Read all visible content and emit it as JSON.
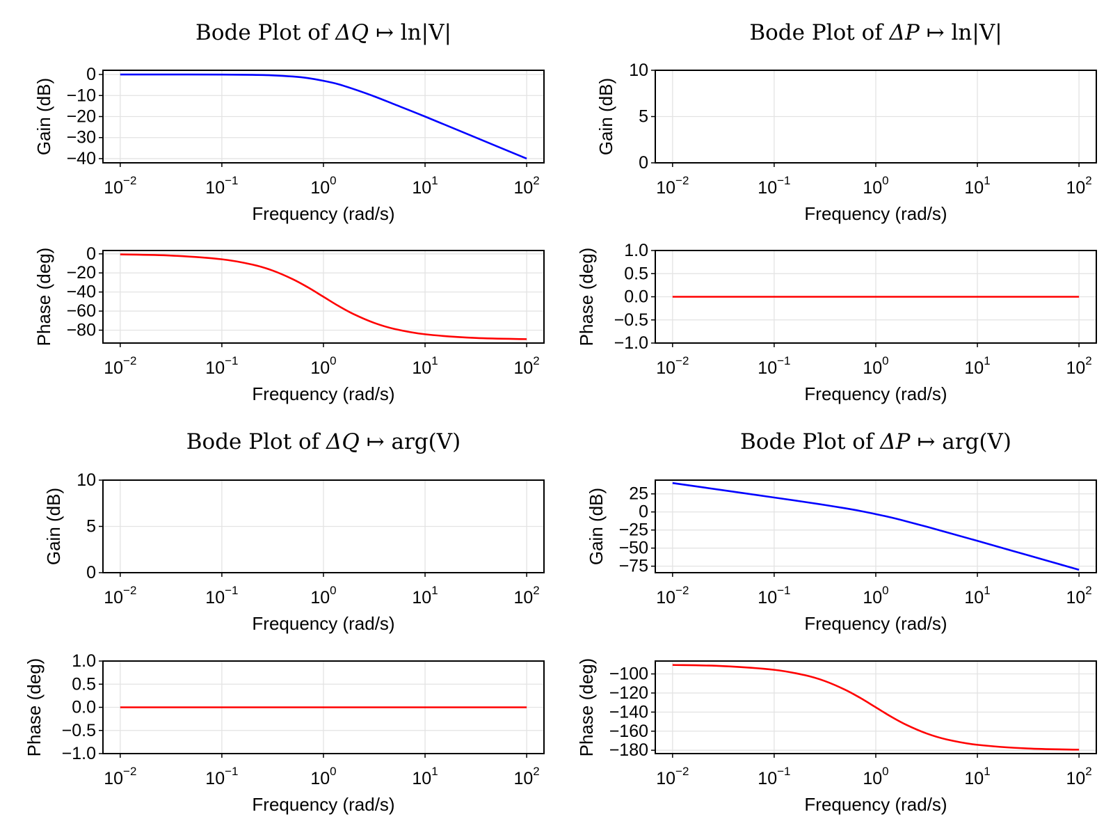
{
  "chart_data": [
    {
      "type": "line",
      "title_parts": {
        "prefix": "Bode Plot of",
        "input": "ΔQ",
        "arrow": "↦",
        "output": "ln|V|"
      },
      "panels": [
        {
          "kind": "gain",
          "ylabel": "Gain (dB)",
          "xlabel": "Frequency (rad/s)",
          "color": "#0000ff",
          "xscale": "log",
          "xlim": [
            0.00676,
            148
          ],
          "ylim": [
            -42,
            2
          ],
          "yticks": [
            {
              "v": 0,
              "label": "0"
            },
            {
              "v": -10,
              "label": "−10"
            },
            {
              "v": -20,
              "label": "−20"
            },
            {
              "v": -30,
              "label": "−30"
            },
            {
              "v": -40,
              "label": "−40"
            }
          ],
          "xticks": [
            {
              "v": 0.01,
              "base": "10",
              "exp": "−2"
            },
            {
              "v": 0.1,
              "base": "10",
              "exp": "−1"
            },
            {
              "v": 1,
              "base": "10",
              "exp": "0"
            },
            {
              "v": 10,
              "base": "10",
              "exp": "1"
            },
            {
              "v": 100,
              "base": "10",
              "exp": "2"
            }
          ],
          "x": [
            0.01,
            0.0316,
            0.1,
            0.2,
            0.316,
            0.5,
            0.7,
            1,
            1.4,
            2,
            3.16,
            5,
            10,
            31.6,
            100
          ],
          "y": [
            0,
            0,
            -0.04,
            -0.17,
            -0.41,
            -0.97,
            -1.7,
            -3.01,
            -4.6,
            -6.99,
            -10.4,
            -14.2,
            -20.0,
            -30.0,
            -40.0
          ]
        },
        {
          "kind": "phase",
          "ylabel": "Phase (deg)",
          "xlabel": "Frequency (rad/s)",
          "color": "#ff0000",
          "xscale": "log",
          "xlim": [
            0.00676,
            148
          ],
          "ylim": [
            -93.5,
            3.5
          ],
          "yticks": [
            {
              "v": 0,
              "label": "0"
            },
            {
              "v": -20,
              "label": "−20"
            },
            {
              "v": -40,
              "label": "−40"
            },
            {
              "v": -60,
              "label": "−60"
            },
            {
              "v": -80,
              "label": "−80"
            }
          ],
          "xticks": [
            {
              "v": 0.01,
              "base": "10",
              "exp": "−2"
            },
            {
              "v": 0.1,
              "base": "10",
              "exp": "−1"
            },
            {
              "v": 1,
              "base": "10",
              "exp": "0"
            },
            {
              "v": 10,
              "base": "10",
              "exp": "1"
            },
            {
              "v": 100,
              "base": "10",
              "exp": "2"
            }
          ],
          "x": [
            0.01,
            0.0316,
            0.1,
            0.2,
            0.316,
            0.5,
            0.7,
            1,
            1.4,
            2,
            3.16,
            5,
            10,
            31.6,
            100
          ],
          "y": [
            -0.57,
            -1.81,
            -5.71,
            -11.3,
            -17.5,
            -26.6,
            -35.0,
            -45.0,
            -54.5,
            -63.4,
            -72.4,
            -78.7,
            -84.3,
            -88.2,
            -89.4
          ]
        }
      ]
    },
    {
      "type": "line",
      "title_parts": {
        "prefix": "Bode Plot of",
        "input": "ΔP",
        "arrow": "↦",
        "output": "ln|V|"
      },
      "panels": [
        {
          "kind": "gain",
          "ylabel": "Gain (dB)",
          "xlabel": "Frequency (rad/s)",
          "color": "#0000ff",
          "xscale": "log",
          "xlim": [
            0.00676,
            148
          ],
          "ylim": [
            0,
            10
          ],
          "yticks": [
            {
              "v": 0,
              "label": "0"
            },
            {
              "v": 5,
              "label": "5"
            },
            {
              "v": 10,
              "label": "10"
            }
          ],
          "xticks": [
            {
              "v": 0.01,
              "base": "10",
              "exp": "−2"
            },
            {
              "v": 0.1,
              "base": "10",
              "exp": "−1"
            },
            {
              "v": 1,
              "base": "10",
              "exp": "0"
            },
            {
              "v": 10,
              "base": "10",
              "exp": "1"
            },
            {
              "v": 100,
              "base": "10",
              "exp": "2"
            }
          ],
          "x": [],
          "y": []
        },
        {
          "kind": "phase",
          "ylabel": "Phase (deg)",
          "xlabel": "Frequency (rad/s)",
          "color": "#ff0000",
          "xscale": "log",
          "xlim": [
            0.00676,
            148
          ],
          "ylim": [
            -1,
            1
          ],
          "yticks": [
            {
              "v": 1,
              "label": "1.0"
            },
            {
              "v": 0.5,
              "label": "0.5"
            },
            {
              "v": 0,
              "label": "0.0"
            },
            {
              "v": -0.5,
              "label": "−0.5"
            },
            {
              "v": -1,
              "label": "−1.0"
            }
          ],
          "xticks": [
            {
              "v": 0.01,
              "base": "10",
              "exp": "−2"
            },
            {
              "v": 0.1,
              "base": "10",
              "exp": "−1"
            },
            {
              "v": 1,
              "base": "10",
              "exp": "0"
            },
            {
              "v": 10,
              "base": "10",
              "exp": "1"
            },
            {
              "v": 100,
              "base": "10",
              "exp": "2"
            }
          ],
          "x": [
            0.01,
            100
          ],
          "y": [
            0,
            0
          ]
        }
      ]
    },
    {
      "type": "line",
      "title_parts": {
        "prefix": "Bode Plot of",
        "input": "ΔQ",
        "arrow": "↦",
        "output": "arg(V)"
      },
      "panels": [
        {
          "kind": "gain",
          "ylabel": "Gain (dB)",
          "xlabel": "Frequency (rad/s)",
          "color": "#0000ff",
          "xscale": "log",
          "xlim": [
            0.00676,
            148
          ],
          "ylim": [
            0,
            10
          ],
          "yticks": [
            {
              "v": 0,
              "label": "0"
            },
            {
              "v": 5,
              "label": "5"
            },
            {
              "v": 10,
              "label": "10"
            }
          ],
          "xticks": [
            {
              "v": 0.01,
              "base": "10",
              "exp": "−2"
            },
            {
              "v": 0.1,
              "base": "10",
              "exp": "−1"
            },
            {
              "v": 1,
              "base": "10",
              "exp": "0"
            },
            {
              "v": 10,
              "base": "10",
              "exp": "1"
            },
            {
              "v": 100,
              "base": "10",
              "exp": "2"
            }
          ],
          "x": [],
          "y": []
        },
        {
          "kind": "phase",
          "ylabel": "Phase (deg)",
          "xlabel": "Frequency (rad/s)",
          "color": "#ff0000",
          "xscale": "log",
          "xlim": [
            0.00676,
            148
          ],
          "ylim": [
            -1,
            1
          ],
          "yticks": [
            {
              "v": 1,
              "label": "1.0"
            },
            {
              "v": 0.5,
              "label": "0.5"
            },
            {
              "v": 0,
              "label": "0.0"
            },
            {
              "v": -0.5,
              "label": "−0.5"
            },
            {
              "v": -1,
              "label": "−1.0"
            }
          ],
          "xticks": [
            {
              "v": 0.01,
              "base": "10",
              "exp": "−2"
            },
            {
              "v": 0.1,
              "base": "10",
              "exp": "−1"
            },
            {
              "v": 1,
              "base": "10",
              "exp": "0"
            },
            {
              "v": 10,
              "base": "10",
              "exp": "1"
            },
            {
              "v": 100,
              "base": "10",
              "exp": "2"
            }
          ],
          "x": [
            0.01,
            100
          ],
          "y": [
            0,
            0
          ]
        }
      ]
    },
    {
      "type": "line",
      "title_parts": {
        "prefix": "Bode Plot of",
        "input": "ΔP",
        "arrow": "↦",
        "output": "arg(V)"
      },
      "panels": [
        {
          "kind": "gain",
          "ylabel": "Gain (dB)",
          "xlabel": "Frequency (rad/s)",
          "color": "#0000ff",
          "xscale": "log",
          "xlim": [
            0.00676,
            148
          ],
          "ylim": [
            -84,
            44
          ],
          "yticks": [
            {
              "v": 25,
              "label": "25"
            },
            {
              "v": 0,
              "label": "0"
            },
            {
              "v": -25,
              "label": "−25"
            },
            {
              "v": -50,
              "label": "−50"
            },
            {
              "v": -75,
              "label": "−75"
            }
          ],
          "xticks": [
            {
              "v": 0.01,
              "base": "10",
              "exp": "−2"
            },
            {
              "v": 0.1,
              "base": "10",
              "exp": "−1"
            },
            {
              "v": 1,
              "base": "10",
              "exp": "0"
            },
            {
              "v": 10,
              "base": "10",
              "exp": "1"
            },
            {
              "v": 100,
              "base": "10",
              "exp": "2"
            }
          ],
          "x": [
            0.01,
            0.0316,
            0.1,
            0.2,
            0.316,
            0.5,
            0.7,
            1,
            1.4,
            2,
            3.16,
            5,
            10,
            31.6,
            100
          ],
          "y": [
            40.0,
            30.0,
            19.96,
            13.81,
            9.59,
            5.05,
            1.4,
            -3.01,
            -7.52,
            -12.97,
            -20.4,
            -28.2,
            -40.0,
            -60.0,
            -80.0
          ]
        },
        {
          "kind": "phase",
          "ylabel": "Phase (deg)",
          "xlabel": "Frequency (rad/s)",
          "color": "#ff0000",
          "xscale": "log",
          "xlim": [
            0.00676,
            148
          ],
          "ylim": [
            -183.5,
            -86.5
          ],
          "yticks": [
            {
              "v": -100,
              "label": "−100"
            },
            {
              "v": -120,
              "label": "−120"
            },
            {
              "v": -140,
              "label": "−140"
            },
            {
              "v": -160,
              "label": "−160"
            },
            {
              "v": -180,
              "label": "−180"
            }
          ],
          "xticks": [
            {
              "v": 0.01,
              "base": "10",
              "exp": "−2"
            },
            {
              "v": 0.1,
              "base": "10",
              "exp": "−1"
            },
            {
              "v": 1,
              "base": "10",
              "exp": "0"
            },
            {
              "v": 10,
              "base": "10",
              "exp": "1"
            },
            {
              "v": 100,
              "base": "10",
              "exp": "2"
            }
          ],
          "x": [
            0.01,
            0.0316,
            0.1,
            0.2,
            0.316,
            0.5,
            0.7,
            1,
            1.4,
            2,
            3.16,
            5,
            10,
            31.6,
            100
          ],
          "y": [
            -90.6,
            -91.8,
            -95.7,
            -101.3,
            -107.5,
            -116.6,
            -125.0,
            -135.0,
            -144.5,
            -153.4,
            -162.4,
            -168.7,
            -174.3,
            -178.2,
            -179.4
          ]
        }
      ]
    }
  ]
}
